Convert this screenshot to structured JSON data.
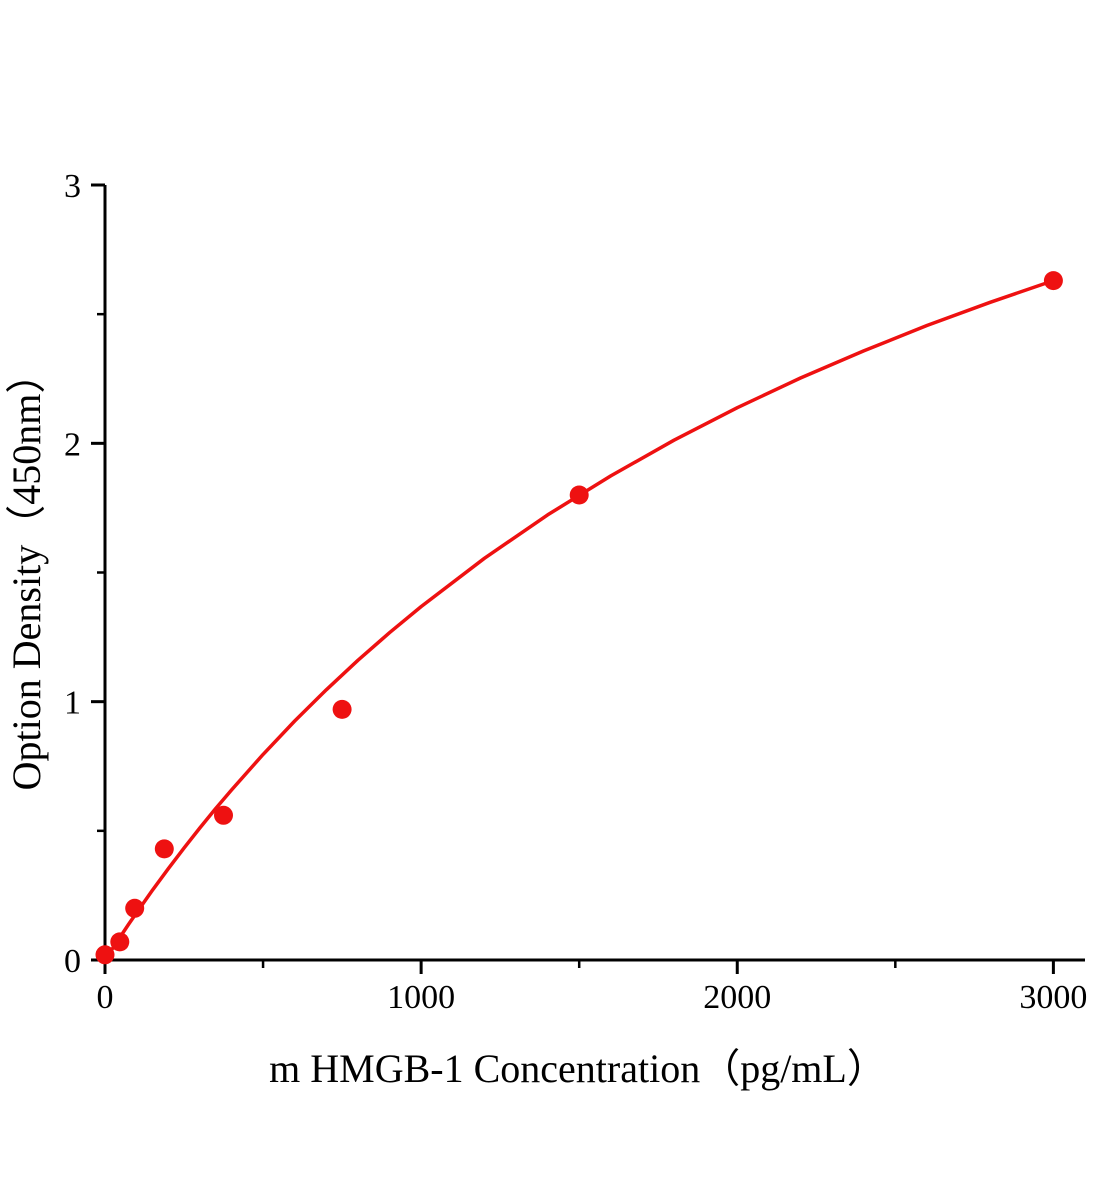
{
  "figure": {
    "background": "#ffffff",
    "axis_color": "#000000"
  },
  "chart_data": {
    "type": "scatter",
    "title": "",
    "xlabel": "m HMGB-1 Concentration（pg/mL）",
    "ylabel": "Option Density（450nm）",
    "xlim": [
      0,
      3100
    ],
    "ylim": [
      0,
      3
    ],
    "x_ticks": [
      0,
      1000,
      2000,
      3000
    ],
    "x_minor_ticks": [
      500,
      1500,
      2500
    ],
    "y_ticks": [
      0,
      1,
      2,
      3
    ],
    "y_minor_ticks": [
      0.5,
      1.5,
      2.5
    ],
    "grid": false,
    "legend": null,
    "series": [
      {
        "name": "m HMGB-1 standard",
        "color": "#ee1111",
        "marker": "circle",
        "marker_radius": 9.5,
        "points": [
          [
            0,
            0.02
          ],
          [
            46.9,
            0.07
          ],
          [
            93.8,
            0.2
          ],
          [
            187.5,
            0.43
          ],
          [
            375,
            0.56
          ],
          [
            750,
            0.97
          ],
          [
            1500,
            1.8
          ],
          [
            3000,
            2.63
          ]
        ]
      }
    ],
    "fit_curve": {
      "color": "#ee1111",
      "stroke_width": 3.5,
      "points": [
        [
          0,
          0
        ],
        [
          25,
          0.047
        ],
        [
          50,
          0.093
        ],
        [
          75,
          0.139
        ],
        [
          100,
          0.183
        ],
        [
          150,
          0.27
        ],
        [
          200,
          0.353
        ],
        [
          250,
          0.433
        ],
        [
          300,
          0.511
        ],
        [
          350,
          0.586
        ],
        [
          400,
          0.658
        ],
        [
          500,
          0.796
        ],
        [
          600,
          0.925
        ],
        [
          700,
          1.046
        ],
        [
          800,
          1.16
        ],
        [
          900,
          1.267
        ],
        [
          1000,
          1.368
        ],
        [
          1200,
          1.555
        ],
        [
          1400,
          1.723
        ],
        [
          1600,
          1.874
        ],
        [
          1800,
          2.012
        ],
        [
          2000,
          2.138
        ],
        [
          2200,
          2.253
        ],
        [
          2400,
          2.358
        ],
        [
          2600,
          2.456
        ],
        [
          2800,
          2.546
        ],
        [
          3000,
          2.63
        ]
      ]
    }
  }
}
